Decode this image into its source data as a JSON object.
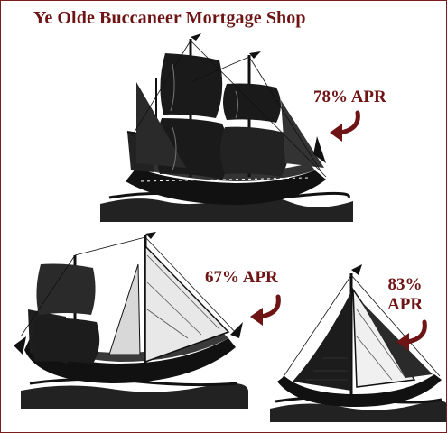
{
  "title": "Ye Olde Buccaneer Mortgage Shop",
  "offers": [
    {
      "rate_line1": "78% APR"
    },
    {
      "rate_line1": "67% APR"
    },
    {
      "rate_line1": "83%",
      "rate_line2": "APR"
    }
  ],
  "colors": {
    "accent": "#6e1414",
    "ink": "#111111",
    "paper": "#ffffff"
  },
  "icons": [
    "galleon-ship-illustration",
    "curved-arrow-icon"
  ]
}
